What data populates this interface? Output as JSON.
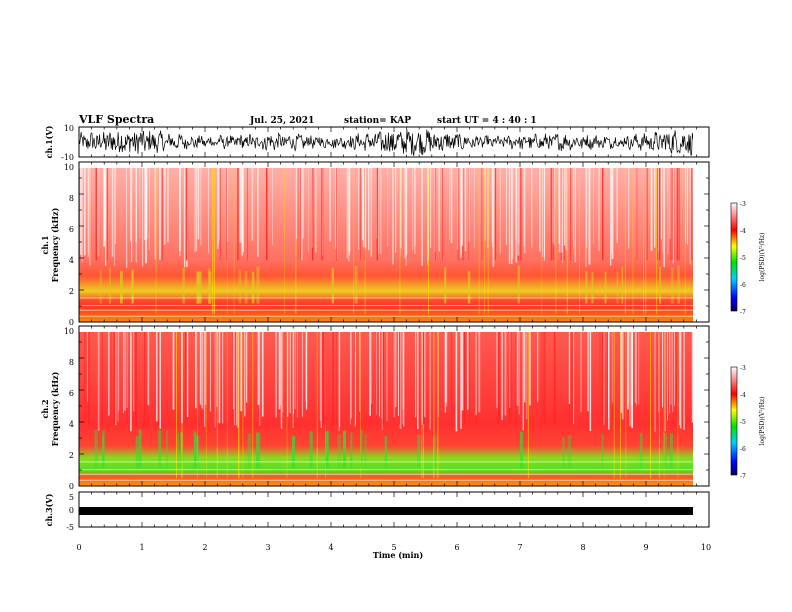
{
  "header": {
    "title": "VLF Spectra",
    "date": "Jul. 25, 2021",
    "station": "station= KAP",
    "start": "start  UT =   4 : 40 : 1"
  },
  "chart_data": [
    {
      "type": "line",
      "id": "ch1_waveform",
      "ylabel": "ch.1(V)",
      "ylim": [
        -10,
        10
      ],
      "yticks": [
        "10",
        "-10"
      ],
      "xlim": [
        0,
        10
      ],
      "description_values": "dense black waveform, amplitude mostly between -8 and +8 V"
    },
    {
      "type": "heatmap",
      "id": "ch1_spectrogram",
      "ylabel_lines": [
        "ch.1",
        "Frequency  (kHz)"
      ],
      "ylim": [
        0,
        10
      ],
      "yticks": [
        "0",
        "2",
        "4",
        "6",
        "8",
        "10"
      ],
      "xlim": [
        0,
        10
      ],
      "colorbar": {
        "label": "log(PSD)(V²/Hz)",
        "range": [
          -7,
          -3
        ],
        "ticks": [
          "-3",
          "-4",
          "-5",
          "-6",
          "-7"
        ]
      },
      "bands": [
        {
          "from_khz": 0,
          "to_khz": 1.2,
          "level": -4.6
        },
        {
          "from_khz": 1.2,
          "to_khz": 3.5,
          "level": -4.3
        },
        {
          "from_khz": 3.5,
          "to_khz": 10,
          "level": -3.6
        }
      ]
    },
    {
      "type": "heatmap",
      "id": "ch2_spectrogram",
      "ylabel_lines": [
        "ch.2",
        "Frequency  (kHz)"
      ],
      "ylim": [
        0,
        10
      ],
      "yticks": [
        "0",
        "2",
        "4",
        "6",
        "8",
        "10"
      ],
      "xlim": [
        0,
        10
      ],
      "colorbar": {
        "label": "log(PSD)(V²/Hz)",
        "range": [
          -7,
          -3
        ],
        "ticks": [
          "-3",
          "-4",
          "-5",
          "-6",
          "-7"
        ]
      },
      "bands": [
        {
          "from_khz": 0,
          "to_khz": 1.0,
          "level": -4.8
        },
        {
          "from_khz": 1.0,
          "to_khz": 3.0,
          "level": -4.6
        },
        {
          "from_khz": 3.0,
          "to_khz": 10,
          "level": -3.8
        }
      ]
    },
    {
      "type": "line",
      "id": "ch3_waveform",
      "ylabel": "ch.3(V)",
      "ylim": [
        -5,
        5
      ],
      "yticks": [
        "5",
        "0",
        "-5"
      ],
      "xlim": [
        0,
        10
      ],
      "baseline": -1
    }
  ],
  "xaxis": {
    "label": "Time  (min)",
    "ticks": [
      "0",
      "1",
      "2",
      "3",
      "4",
      "5",
      "6",
      "7",
      "8",
      "9",
      "10"
    ]
  },
  "colors": {
    "spectro_bg": "#ff2a2a",
    "spectro_hi": "#ffffff",
    "mid": "#ffd400",
    "low": "#22dd22"
  }
}
